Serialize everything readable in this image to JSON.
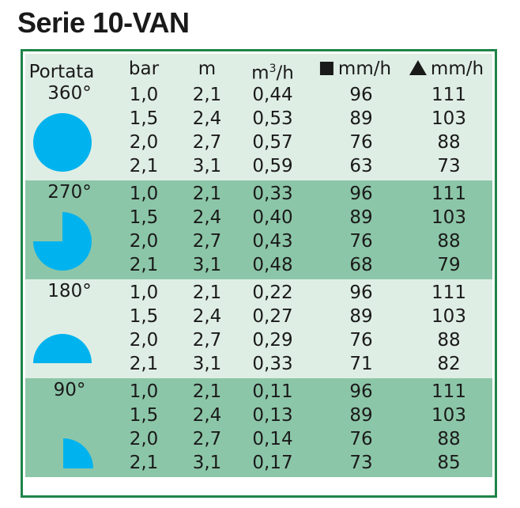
{
  "title": "Serie 10-VAN",
  "colors": {
    "border": "#1e8449",
    "band_light": "#dfeee5",
    "band_dark": "#8cc6a8",
    "icon": "#00b3ee"
  },
  "headers": {
    "portata": "Portata",
    "bar": "bar",
    "m": "m",
    "flow_base": "m",
    "flow_sup": "3",
    "flow_tail": "/h",
    "square_rate": "mm/h",
    "triangle_rate": "mm/h"
  },
  "groups": [
    {
      "angle": "360°",
      "icon": "full-circle-icon",
      "rows": [
        [
          "1,0",
          "2,1",
          "0,44",
          "96",
          "111"
        ],
        [
          "1,5",
          "2,4",
          "0,53",
          "89",
          "103"
        ],
        [
          "2,0",
          "2,7",
          "0,57",
          "76",
          "88"
        ],
        [
          "2,1",
          "3,1",
          "0,59",
          "63",
          "73"
        ]
      ]
    },
    {
      "angle": "270°",
      "icon": "three-quarter-circle-icon",
      "rows": [
        [
          "1,0",
          "2,1",
          "0,33",
          "96",
          "111"
        ],
        [
          "1,5",
          "2,4",
          "0,40",
          "89",
          "103"
        ],
        [
          "2,0",
          "2,7",
          "0,43",
          "76",
          "88"
        ],
        [
          "2,1",
          "3,1",
          "0,48",
          "68",
          "79"
        ]
      ]
    },
    {
      "angle": "180°",
      "icon": "half-circle-icon",
      "rows": [
        [
          "1,0",
          "2,1",
          "0,22",
          "96",
          "111"
        ],
        [
          "1,5",
          "2,4",
          "0,27",
          "89",
          "103"
        ],
        [
          "2,0",
          "2,7",
          "0,29",
          "76",
          "88"
        ],
        [
          "2,1",
          "3,1",
          "0,33",
          "71",
          "82"
        ]
      ]
    },
    {
      "angle": "90°",
      "icon": "quarter-circle-icon",
      "rows": [
        [
          "1,0",
          "2,1",
          "0,11",
          "96",
          "111"
        ],
        [
          "1,5",
          "2,4",
          "0,13",
          "89",
          "103"
        ],
        [
          "2,0",
          "2,7",
          "0,14",
          "76",
          "88"
        ],
        [
          "2,1",
          "3,1",
          "0,17",
          "73",
          "85"
        ]
      ]
    }
  ]
}
